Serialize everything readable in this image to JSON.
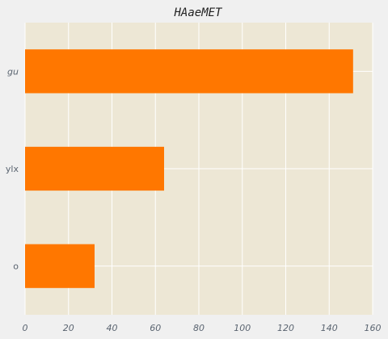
{
  "chart_data": {
    "type": "bar",
    "orientation": "horizontal",
    "title": "HAaeMET",
    "xlabel": "",
    "ylabel": "",
    "categories": [
      "o",
      "ylx",
      "gu"
    ],
    "categories_italic": [
      false,
      false,
      true
    ],
    "values": [
      32,
      64,
      151
    ],
    "xlim": [
      0,
      160
    ],
    "xticks": [
      0,
      20,
      40,
      60,
      80,
      100,
      120,
      140,
      160
    ],
    "grid": true,
    "legend": "none"
  },
  "colors": {
    "background": "#f0f0f0",
    "plot_background": "#ede7d5",
    "bar": "#ff7700",
    "grid": "#ffffff",
    "tick_text": "#5a6470",
    "title_text": "#222222"
  }
}
